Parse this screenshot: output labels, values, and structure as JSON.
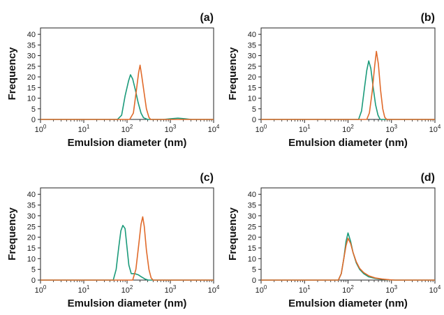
{
  "chart_data": [
    {
      "type": "line",
      "panel_label": "(a)",
      "xlabel": "Emulsion diameter (nm)",
      "ylabel": "Frequency",
      "xscale": "log",
      "xlim": [
        1,
        10000
      ],
      "ylim": [
        0,
        43
      ],
      "x_ticks": [
        "10^0",
        "10^1",
        "10^2",
        "10^3",
        "10^4"
      ],
      "y_ticks": [
        "0",
        "5",
        "10",
        "15",
        "20",
        "25",
        "30",
        "35",
        "40"
      ],
      "series": [
        {
          "color": "#1a9a7a",
          "points": [
            [
              1,
              0
            ],
            [
              60,
              0
            ],
            [
              75,
              2
            ],
            [
              90,
              11
            ],
            [
              108,
              18
            ],
            [
              120,
              21
            ],
            [
              135,
              19
            ],
            [
              155,
              14
            ],
            [
              180,
              8
            ],
            [
              210,
              3
            ],
            [
              240,
              0.8
            ],
            [
              300,
              0
            ],
            [
              700,
              0
            ],
            [
              1000,
              0.3
            ],
            [
              1500,
              0.6
            ],
            [
              2200,
              0.3
            ],
            [
              3000,
              0
            ],
            [
              10000,
              0
            ]
          ]
        },
        {
          "color": "#e06a2a",
          "points": [
            [
              1,
              0
            ],
            [
              115,
              0
            ],
            [
              140,
              3
            ],
            [
              165,
              14
            ],
            [
              185,
              22
            ],
            [
              200,
              25.5
            ],
            [
              220,
              20
            ],
            [
              250,
              12
            ],
            [
              280,
              5
            ],
            [
              320,
              1
            ],
            [
              350,
              0
            ],
            [
              10000,
              0
            ]
          ]
        }
      ]
    },
    {
      "type": "line",
      "panel_label": "(b)",
      "xlabel": "Emulsion diameter (nm)",
      "ylabel": "Frequency",
      "xscale": "log",
      "xlim": [
        1,
        10000
      ],
      "ylim": [
        0,
        43
      ],
      "x_ticks": [
        "10^0",
        "10^1",
        "10^2",
        "10^3",
        "10^4"
      ],
      "y_ticks": [
        "0",
        "5",
        "10",
        "15",
        "20",
        "25",
        "30",
        "35",
        "40"
      ],
      "series": [
        {
          "color": "#1a9a7a",
          "points": [
            [
              1,
              0
            ],
            [
              175,
              0
            ],
            [
              205,
              4
            ],
            [
              240,
              15
            ],
            [
              270,
              23
            ],
            [
              300,
              27.5
            ],
            [
              335,
              24
            ],
            [
              380,
              15
            ],
            [
              430,
              7
            ],
            [
              490,
              2
            ],
            [
              550,
              0
            ],
            [
              10000,
              0
            ]
          ]
        },
        {
          "color": "#e06a2a",
          "points": [
            [
              1,
              0
            ],
            [
              270,
              0
            ],
            [
              310,
              3
            ],
            [
              360,
              13
            ],
            [
              410,
              25
            ],
            [
              450,
              32
            ],
            [
              500,
              26
            ],
            [
              560,
              14
            ],
            [
              630,
              5
            ],
            [
              700,
              1
            ],
            [
              780,
              0
            ],
            [
              10000,
              0
            ]
          ]
        }
      ]
    },
    {
      "type": "line",
      "panel_label": "(c)",
      "xlabel": "Emulsion diameter (nm)",
      "ylabel": "Frequency",
      "xscale": "log",
      "xlim": [
        1,
        10000
      ],
      "ylim": [
        0,
        43
      ],
      "x_ticks": [
        "10^0",
        "10^1",
        "10^2",
        "10^3",
        "10^4"
      ],
      "y_ticks": [
        "0",
        "5",
        "10",
        "15",
        "20",
        "25",
        "30",
        "35",
        "40"
      ],
      "series": [
        {
          "color": "#1a9a7a",
          "points": [
            [
              1,
              0
            ],
            [
              48,
              0
            ],
            [
              56,
              5
            ],
            [
              64,
              15
            ],
            [
              72,
              23
            ],
            [
              80,
              25.5
            ],
            [
              90,
              24
            ],
            [
              100,
              15
            ],
            [
              110,
              7
            ],
            [
              125,
              3
            ],
            [
              150,
              3
            ],
            [
              180,
              2.5
            ],
            [
              215,
              1.5
            ],
            [
              260,
              0.5
            ],
            [
              310,
              0
            ],
            [
              10000,
              0
            ]
          ]
        },
        {
          "color": "#e06a2a",
          "points": [
            [
              1,
              0
            ],
            [
              135,
              0
            ],
            [
              160,
              5
            ],
            [
              185,
              16
            ],
            [
              210,
              26
            ],
            [
              230,
              29.5
            ],
            [
              250,
              25
            ],
            [
              280,
              14
            ],
            [
              320,
              5
            ],
            [
              360,
              1
            ],
            [
              400,
              0
            ],
            [
              10000,
              0
            ]
          ]
        }
      ]
    },
    {
      "type": "line",
      "panel_label": "(d)",
      "xlabel": "Emulsion diameter (nm)",
      "ylabel": "Frequency",
      "xscale": "log",
      "xlim": [
        1,
        10000
      ],
      "ylim": [
        0,
        43
      ],
      "x_ticks": [
        "10^0",
        "10^1",
        "10^2",
        "10^3",
        "10^4"
      ],
      "y_ticks": [
        "0",
        "5",
        "10",
        "15",
        "20",
        "25",
        "30",
        "35",
        "40"
      ],
      "series": [
        {
          "color": "#1a9a7a",
          "points": [
            [
              1,
              0
            ],
            [
              60,
              0
            ],
            [
              70,
              3
            ],
            [
              80,
              10
            ],
            [
              90,
              18
            ],
            [
              100,
              22
            ],
            [
              115,
              18
            ],
            [
              130,
              13
            ],
            [
              155,
              8
            ],
            [
              185,
              5
            ],
            [
              230,
              3
            ],
            [
              300,
              1.5
            ],
            [
              420,
              0.8
            ],
            [
              600,
              0.4
            ],
            [
              900,
              0.1
            ],
            [
              1200,
              0
            ],
            [
              10000,
              0
            ]
          ]
        },
        {
          "color": "#e06a2a",
          "points": [
            [
              1,
              0
            ],
            [
              60,
              0
            ],
            [
              70,
              3
            ],
            [
              80,
              10
            ],
            [
              90,
              16
            ],
            [
              100,
              19.5
            ],
            [
              115,
              17
            ],
            [
              130,
              13
            ],
            [
              155,
              8.5
            ],
            [
              185,
              5.5
            ],
            [
              230,
              3.5
            ],
            [
              300,
              2
            ],
            [
              420,
              1
            ],
            [
              600,
              0.5
            ],
            [
              900,
              0.15
            ],
            [
              1200,
              0
            ],
            [
              10000,
              0
            ]
          ]
        }
      ]
    }
  ]
}
